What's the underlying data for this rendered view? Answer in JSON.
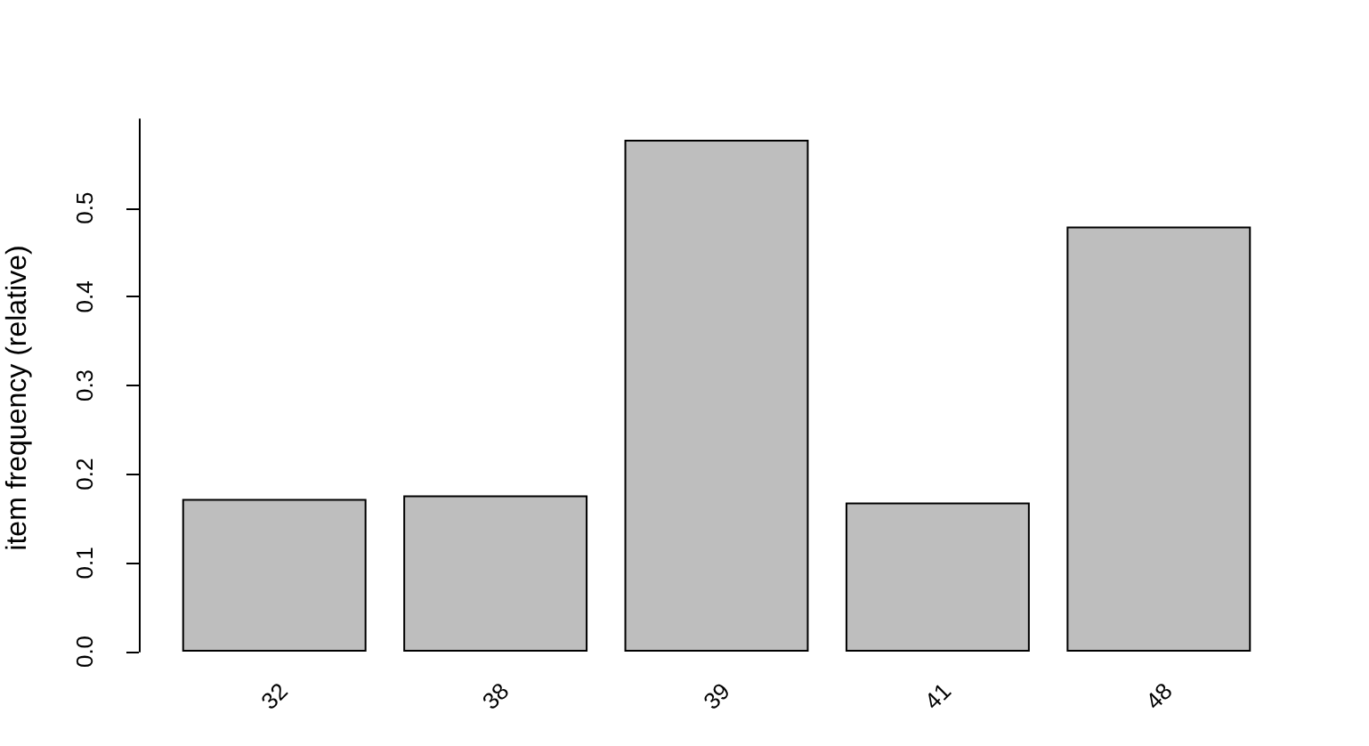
{
  "chart_data": {
    "type": "bar",
    "ylabel": "item frequency (relative)",
    "categories": [
      "32",
      "38",
      "39",
      "41",
      "48"
    ],
    "values": [
      0.172,
      0.176,
      0.577,
      0.168,
      0.479
    ],
    "color": "#bebebe",
    "ylim": [
      0,
      0.6
    ],
    "yticks": [
      {
        "value": 0,
        "label": "0.0"
      },
      0.1,
      0.2,
      0.3,
      0.4,
      0.5
    ],
    "grid": false
  }
}
